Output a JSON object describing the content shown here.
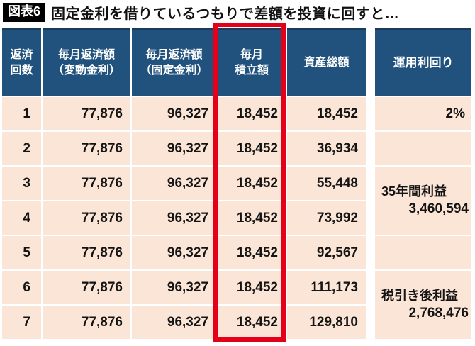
{
  "figure_tag": "図表6",
  "chart_data": {
    "type": "table",
    "title": "固定金利を借りているつもりで差額を投資に回すと…",
    "columns": [
      "返済回数",
      "毎月返済額（変動金利）",
      "毎月返済額（固定金利）",
      "毎月積立額",
      "資産総額",
      "運用利回り"
    ],
    "rows": [
      [
        "1",
        "77,876",
        "96,327",
        "18,452",
        "18,452"
      ],
      [
        "2",
        "77,876",
        "96,327",
        "18,452",
        "36,934"
      ],
      [
        "3",
        "77,876",
        "96,327",
        "18,452",
        "55,448"
      ],
      [
        "4",
        "77,876",
        "96,327",
        "18,452",
        "73,992"
      ],
      [
        "5",
        "77,876",
        "96,327",
        "18,452",
        "92,567"
      ],
      [
        "6",
        "77,876",
        "96,327",
        "18,452",
        "111,173"
      ],
      [
        "7",
        "77,876",
        "96,327",
        "18,452",
        "129,810"
      ]
    ],
    "yield_column": {
      "header": "運用利回り",
      "rate": "2%",
      "rate_rows": [
        1
      ],
      "profit_35y_label": "35年間利益",
      "profit_35y_value": "3,460,594",
      "profit_35y_rows": [
        3,
        4
      ],
      "after_tax_label": "税引き後利益",
      "after_tax_value": "2,768,476",
      "after_tax_rows": [
        6,
        7
      ]
    },
    "highlight": {
      "column": "毎月積立額",
      "style": "red-box",
      "color": "#e50019"
    },
    "grid": "white gaps between peach cells; separate yield block right of main table"
  },
  "header_lines": {
    "c0": [
      "返済",
      "回数"
    ],
    "c1": [
      "毎月返済額",
      "（変動金利）"
    ],
    "c2": [
      "毎月返済額",
      "（固定金利）"
    ],
    "c3": [
      "毎月",
      "積立額"
    ],
    "c4": [
      "資産総額"
    ],
    "c5": [
      "運用利回り"
    ]
  },
  "colors": {
    "header_bg": "#21527e",
    "header_top_border": "#1b3a5c",
    "row_bg": "#fbe5d6",
    "highlight_red": "#e50019",
    "tag_bg": "#000000",
    "tag_text": "#ffffff"
  }
}
